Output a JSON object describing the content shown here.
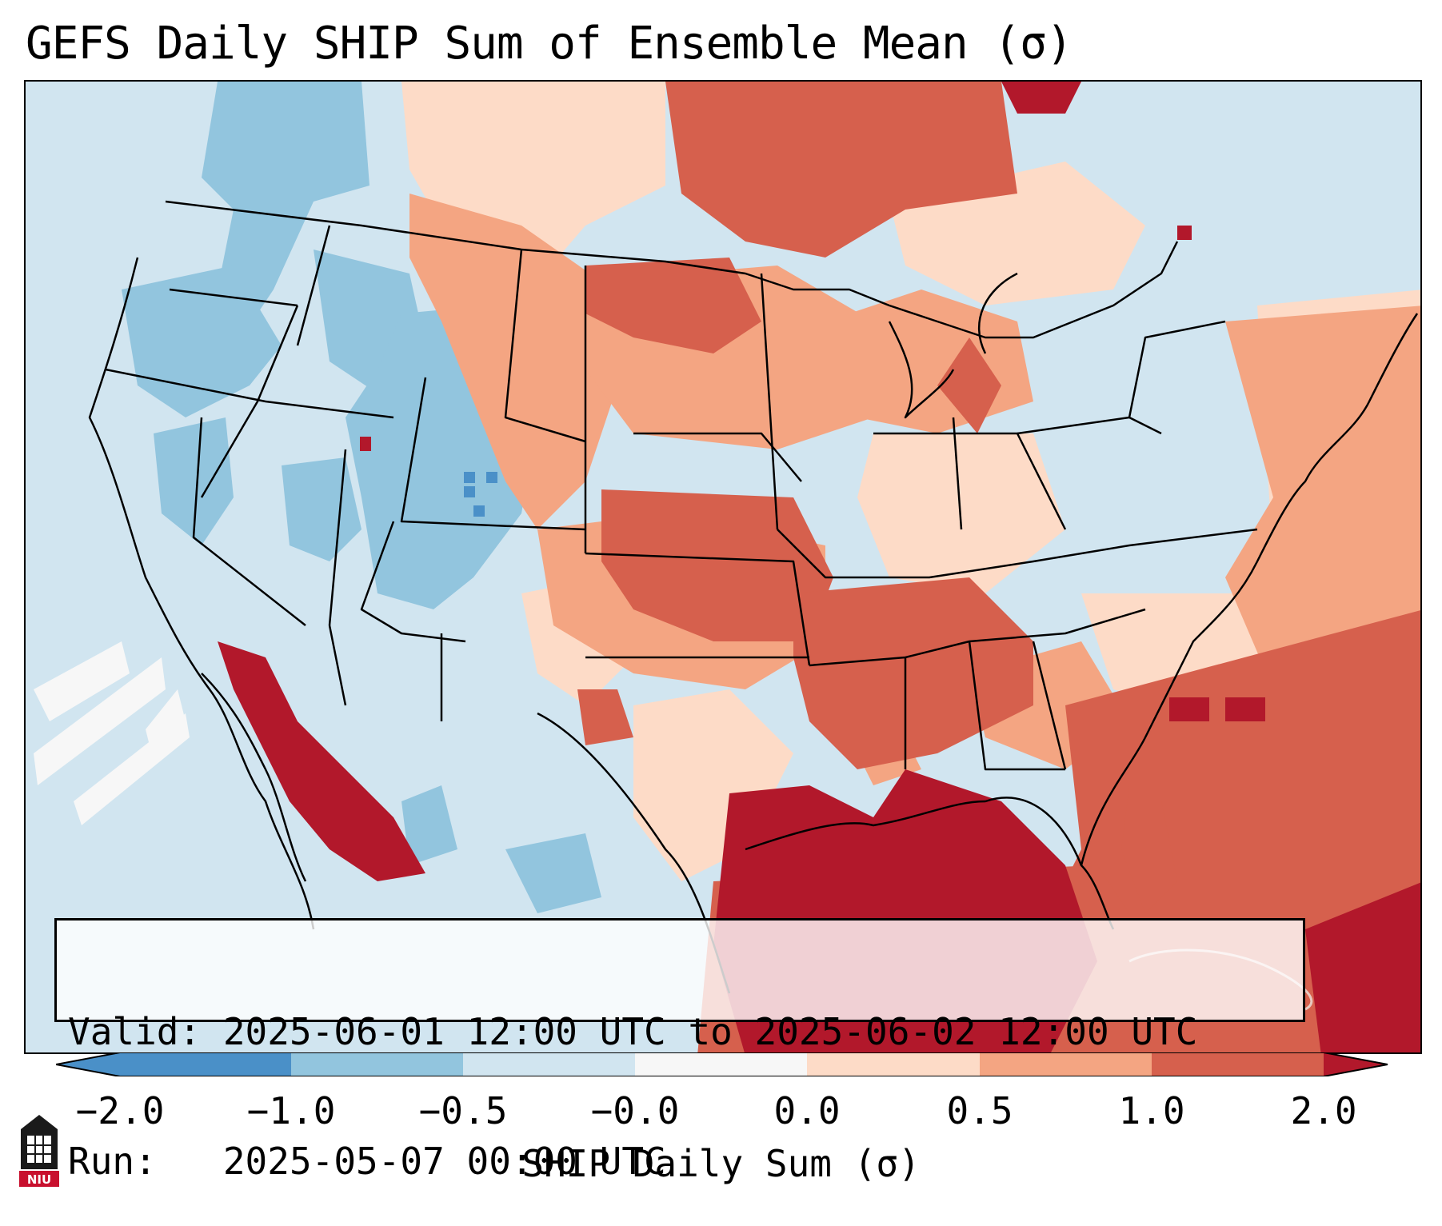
{
  "title": "GEFS Daily SHIP Sum of Ensemble Mean (σ)",
  "info": {
    "valid_line": "Valid: 2025-06-01 12:00 UTC to 2025-06-02 12:00 UTC",
    "run_line": "Run:   2025-05-07 00:00 UTC"
  },
  "colorbar": {
    "label": "SHIP Daily Sum (σ)",
    "ticks": [
      "−2.0",
      "−1.0",
      "−0.5",
      "−0.0",
      "0.0",
      "0.5",
      "1.0",
      "2.0"
    ],
    "colors": [
      "#4a90c8",
      "#92c5de",
      "#d1e5f0",
      "#f7f7f7",
      "#fddbc7",
      "#f4a582",
      "#d6604d",
      "#b2182b"
    ],
    "extend": "both"
  },
  "legend_colors": {
    "strong_negative": "#4a90c8",
    "moderate_negative": "#92c5de",
    "weak_negative": "#d1e5f0",
    "weak_positive": "#fddbc7",
    "moderate_positive": "#f4a582",
    "strong_positive": "#d6604d",
    "very_strong_positive": "#b2182b"
  },
  "logo": {
    "icon": "niu-logo-icon",
    "text": "NIU"
  }
}
